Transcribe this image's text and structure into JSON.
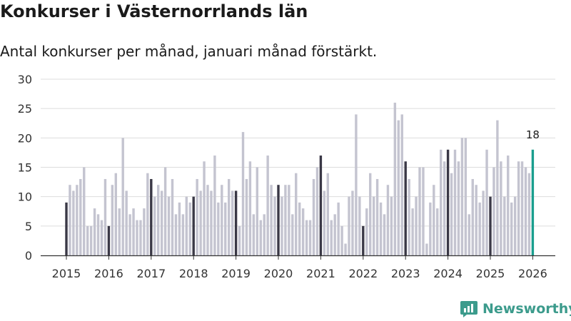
{
  "header": {
    "title": "Konkurser i Västernorrlands län",
    "subtitle": "Antal konkurser per månad, januari månad förstärkt."
  },
  "brand": {
    "name": "Newsworthy",
    "color": "#3c9b8c"
  },
  "colors": {
    "bar": "#c4c4d0",
    "january": "#3a3846",
    "latest": "#1a9e8e",
    "grid": "#dddddd",
    "axis": "#333333"
  },
  "chart_data": {
    "type": "bar",
    "title": "Konkurser i Västernorrlands län",
    "subtitle": "Antal konkurser per månad, januari månad förstärkt.",
    "xlabel": "",
    "ylabel": "",
    "ylim": [
      0,
      30
    ],
    "yticks": [
      0,
      5,
      10,
      15,
      20,
      25,
      30
    ],
    "grid": true,
    "start": "2015-01",
    "year_labels": [
      "2015",
      "2016",
      "2017",
      "2018",
      "2019",
      "2020",
      "2021",
      "2022",
      "2023",
      "2024",
      "2025",
      "2026"
    ],
    "highlight": "January months",
    "annotation": {
      "label": "18",
      "target": "latest"
    },
    "values": [
      9,
      12,
      11,
      12,
      13,
      15,
      5,
      5,
      8,
      7,
      6,
      13,
      5,
      12,
      14,
      8,
      20,
      11,
      7,
      8,
      6,
      6,
      8,
      14,
      13,
      10,
      12,
      11,
      15,
      10,
      13,
      7,
      9,
      7,
      10,
      9,
      10,
      13,
      11,
      16,
      12,
      11,
      17,
      9,
      12,
      9,
      13,
      11,
      11,
      5,
      21,
      13,
      16,
      7,
      15,
      6,
      7,
      17,
      12,
      10,
      12,
      10,
      12,
      12,
      7,
      14,
      9,
      8,
      6,
      6,
      13,
      15,
      17,
      11,
      14,
      6,
      7,
      9,
      5,
      2,
      10,
      11,
      24,
      10,
      5,
      8,
      14,
      10,
      13,
      9,
      7,
      12,
      10,
      26,
      23,
      24,
      16,
      13,
      8,
      10,
      15,
      15,
      2,
      9,
      12,
      8,
      18,
      16,
      18,
      14,
      18,
      16,
      20,
      20,
      7,
      13,
      12,
      9,
      11,
      18,
      10,
      15,
      23,
      16,
      10,
      17,
      9,
      10,
      16,
      16,
      15,
      14,
      18
    ]
  }
}
